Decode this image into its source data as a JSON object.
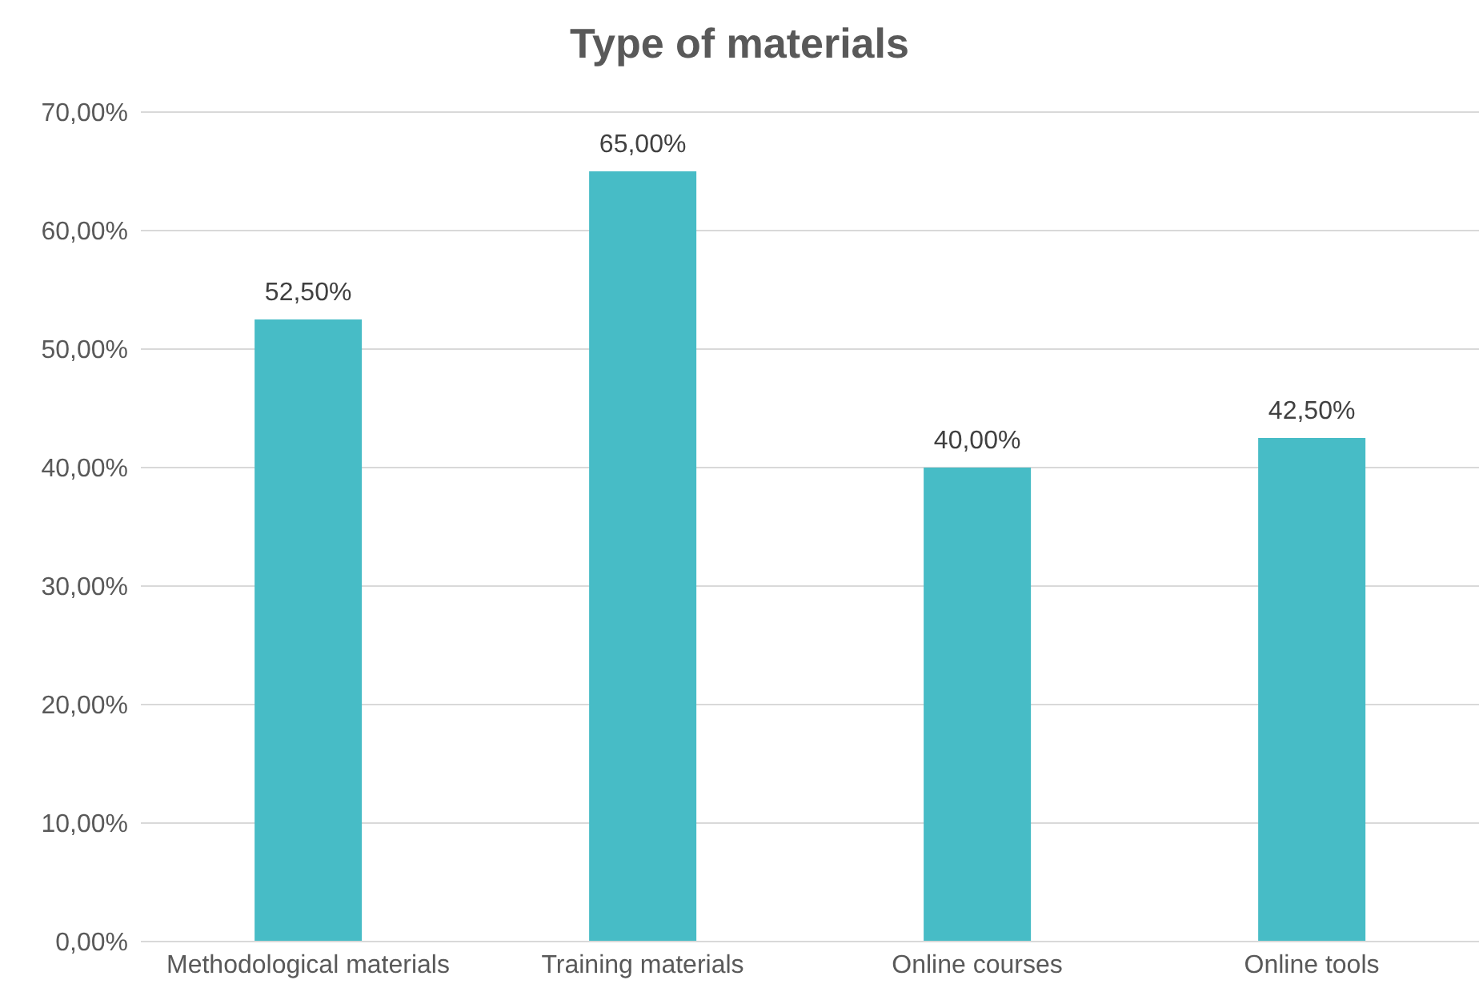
{
  "chart_data": {
    "type": "bar",
    "title": "Type of materials",
    "categories": [
      "Methodological materials",
      "Training materials",
      "Online courses",
      "Online tools"
    ],
    "values": [
      52.5,
      65,
      40,
      42.5
    ],
    "value_labels": [
      "52,50%",
      "65,00%",
      "40,00%",
      "42,50%"
    ],
    "color": "#47bcc6",
    "ylim": [
      0,
      70
    ],
    "yticks": [
      {
        "value": 0,
        "label": "0,00%"
      },
      {
        "value": 10,
        "label": "10,00%"
      },
      {
        "value": 20,
        "label": "20,00%"
      },
      {
        "value": 30,
        "label": "30,00%"
      },
      {
        "value": 40,
        "label": "40,00%"
      },
      {
        "value": 50,
        "label": "50,00%"
      },
      {
        "value": 60,
        "label": "60,00%"
      },
      {
        "value": 70,
        "label": "70,00%"
      }
    ],
    "grid": "y",
    "legend": false
  }
}
